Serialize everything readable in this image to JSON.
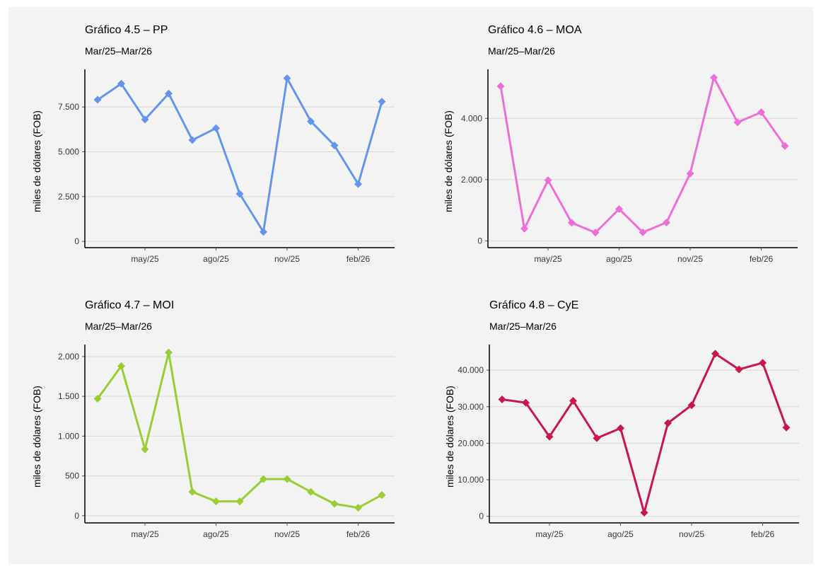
{
  "chart_data": [
    {
      "type": "line",
      "title": "Gráfico 4.5 – PP",
      "subtitle": "Mar/25–Mar/26",
      "ylabel": "miles de dólares (FOB)",
      "x": [
        "mar/25",
        "abr/25",
        "may/25",
        "jun/25",
        "jul/25",
        "ago/25",
        "sep/25",
        "oct/25",
        "nov/25",
        "dic/25",
        "ene/26",
        "feb/26",
        "mar/26"
      ],
      "xticks": [
        "may/25",
        "ago/25",
        "nov/25",
        "feb/26"
      ],
      "yticks": [
        0,
        2500,
        5000,
        7500
      ],
      "ytick_labels": [
        "0",
        "2.500",
        "5.000",
        "7.500"
      ],
      "ylim": [
        -350,
        9600
      ],
      "color": "#6495ED",
      "values": [
        7900,
        8800,
        6800,
        8250,
        5650,
        6320,
        2650,
        530,
        9100,
        6700,
        5350,
        3200,
        7800
      ]
    },
    {
      "type": "line",
      "title": "Gráfico 4.6 – MOA",
      "subtitle": "Mar/25–Mar/26",
      "ylabel": "miles de dólares (FOB)",
      "x": [
        "mar/25",
        "abr/25",
        "may/25",
        "jun/25",
        "jul/25",
        "ago/25",
        "sep/25",
        "oct/25",
        "nov/25",
        "dic/25",
        "ene/26",
        "feb/26",
        "mar/26"
      ],
      "xticks": [
        "may/25",
        "ago/25",
        "nov/25",
        "feb/26"
      ],
      "yticks": [
        0,
        2000,
        4000
      ],
      "ytick_labels": [
        "0",
        "2.000",
        "4.000"
      ],
      "ylim": [
        -220,
        5600
      ],
      "color": "#EE6ED8",
      "values": [
        5050,
        400,
        1980,
        590,
        270,
        1040,
        280,
        600,
        2200,
        5330,
        3870,
        4200,
        3100
      ]
    },
    {
      "type": "line",
      "title": "Gráfico 4.7 – MOI",
      "subtitle": "Mar/25–Mar/26",
      "ylabel": "miles de dólares (FOB)",
      "x": [
        "mar/25",
        "abr/25",
        "may/25",
        "jun/25",
        "jul/25",
        "ago/25",
        "sep/25",
        "oct/25",
        "nov/25",
        "dic/25",
        "ene/26",
        "feb/26",
        "mar/26"
      ],
      "xticks": [
        "may/25",
        "ago/25",
        "nov/25",
        "feb/26"
      ],
      "yticks": [
        0,
        500,
        1000,
        1500,
        2000
      ],
      "ytick_labels": [
        "0",
        "500",
        "1.000",
        "1.500",
        "2.000"
      ],
      "ylim": [
        -90,
        2150
      ],
      "color": "#9ACD32",
      "values": [
        1470,
        1880,
        835,
        2050,
        300,
        180,
        180,
        460,
        460,
        300,
        150,
        100,
        260
      ]
    },
    {
      "type": "line",
      "title": "Gráfico 4.8 – CyE",
      "subtitle": "Mar/25–Mar/26",
      "ylabel": "miles de dólares (FOB)",
      "x": [
        "mar/25",
        "abr/25",
        "may/25",
        "jun/25",
        "jul/25",
        "ago/25",
        "sep/25",
        "oct/25",
        "nov/25",
        "dic/25",
        "ene/26",
        "feb/26",
        "mar/26"
      ],
      "xticks": [
        "may/25",
        "ago/25",
        "nov/25",
        "feb/26"
      ],
      "yticks": [
        0,
        10000,
        20000,
        30000,
        40000
      ],
      "ytick_labels": [
        "0",
        "10.000",
        "20.000",
        "30.000",
        "40.000"
      ],
      "ylim": [
        -1800,
        47000
      ],
      "color": "#C8174A",
      "values": [
        32000,
        31100,
        21800,
        31600,
        21400,
        24100,
        1000,
        25500,
        30400,
        44500,
        40200,
        42000,
        24300
      ]
    }
  ]
}
